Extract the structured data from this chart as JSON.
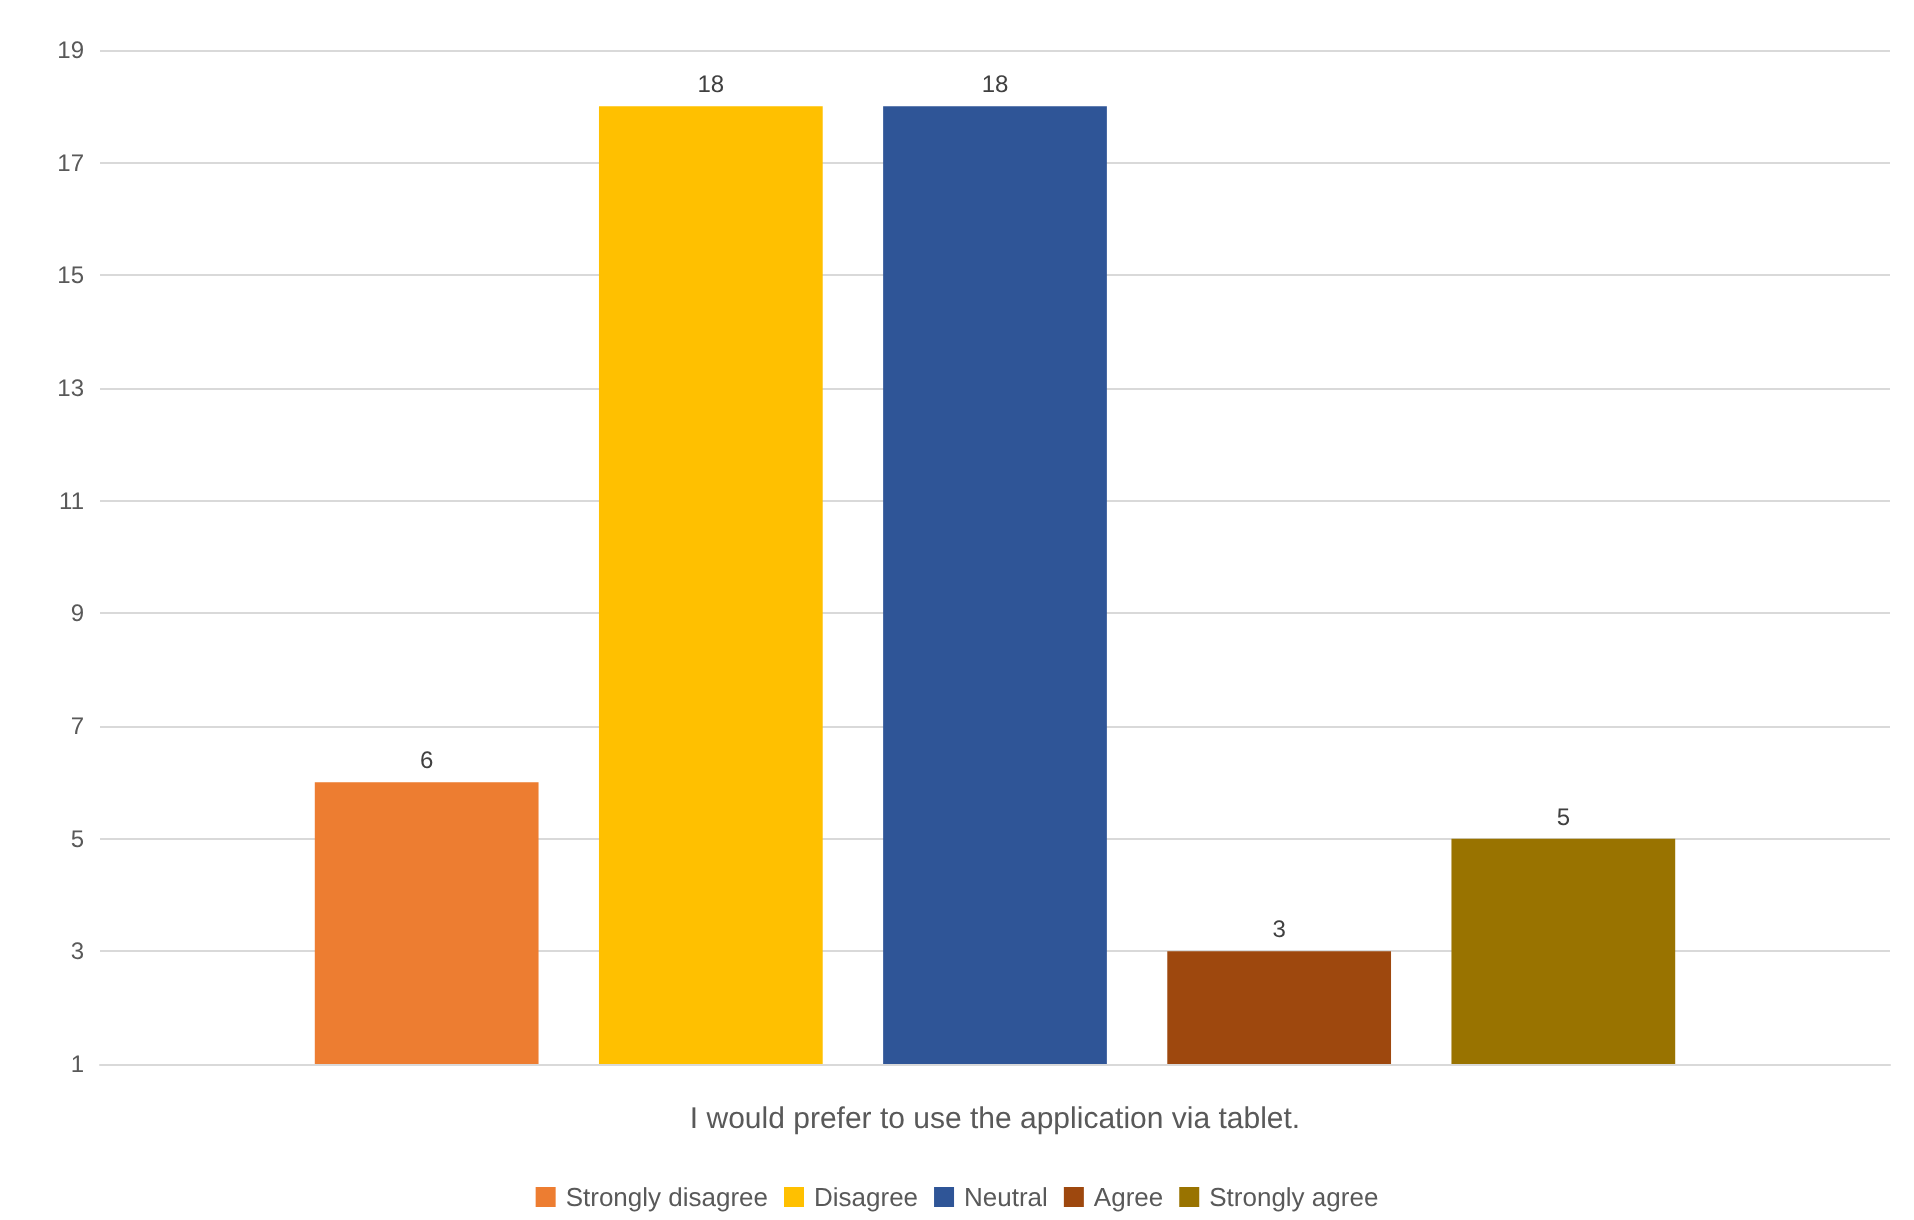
{
  "chart_data": {
    "type": "bar",
    "categories": [
      "I would prefer to use the application via tablet."
    ],
    "series": [
      {
        "name": "Strongly disagree",
        "color": "#ed7d31",
        "values": [
          6
        ]
      },
      {
        "name": "Disagree",
        "color": "#ffc000",
        "values": [
          18
        ]
      },
      {
        "name": "Neutral",
        "color": "#2f5597",
        "values": [
          18
        ]
      },
      {
        "name": "Agree",
        "color": "#9e480e",
        "values": [
          3
        ]
      },
      {
        "name": "Strongly agree",
        "color": "#997300",
        "values": [
          5
        ]
      }
    ],
    "ylim": [
      1,
      19
    ],
    "yticks": [
      1,
      3,
      5,
      7,
      9,
      11,
      13,
      15,
      17,
      19
    ],
    "grid": "y",
    "legend": "bottom",
    "data_labels": true
  }
}
